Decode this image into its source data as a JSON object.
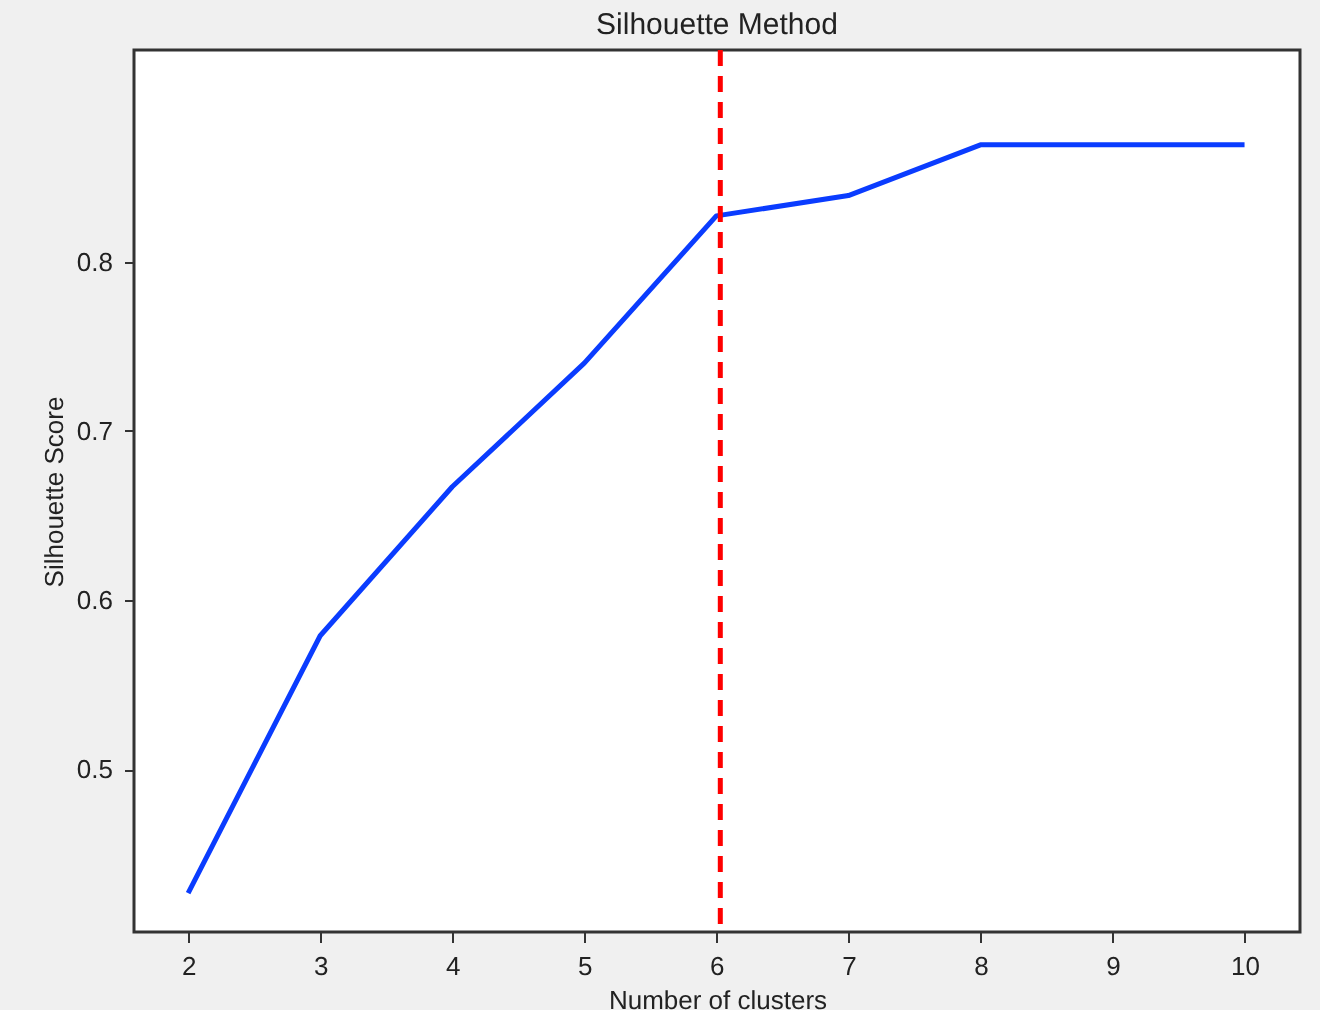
{
  "chart_data": {
    "type": "line",
    "title": "Silhouette Method",
    "xlabel": "Number of clusters",
    "ylabel": "Silhouette Score",
    "x": [
      2,
      3,
      4,
      5,
      6,
      7,
      8,
      9,
      10
    ],
    "series": [
      {
        "color": "#0a3cff",
        "values": [
          0.427,
          0.579,
          0.667,
          0.74,
          0.827,
          0.839,
          0.869,
          0.869,
          0.869
        ]
      }
    ],
    "xlim": [
      1.59,
      10.42
    ],
    "ylim": [
      0.404,
      0.925
    ],
    "xticks": [
      2,
      3,
      4,
      5,
      6,
      7,
      8,
      9,
      10
    ],
    "yticks": [
      0.5,
      0.6,
      0.7,
      0.8
    ],
    "ref_lines": [
      {
        "axis": "x",
        "value": 6.03,
        "color": "#ff0000",
        "line_style": "dashed"
      }
    ],
    "grid": false,
    "marker": "none",
    "line_style": "solid"
  }
}
